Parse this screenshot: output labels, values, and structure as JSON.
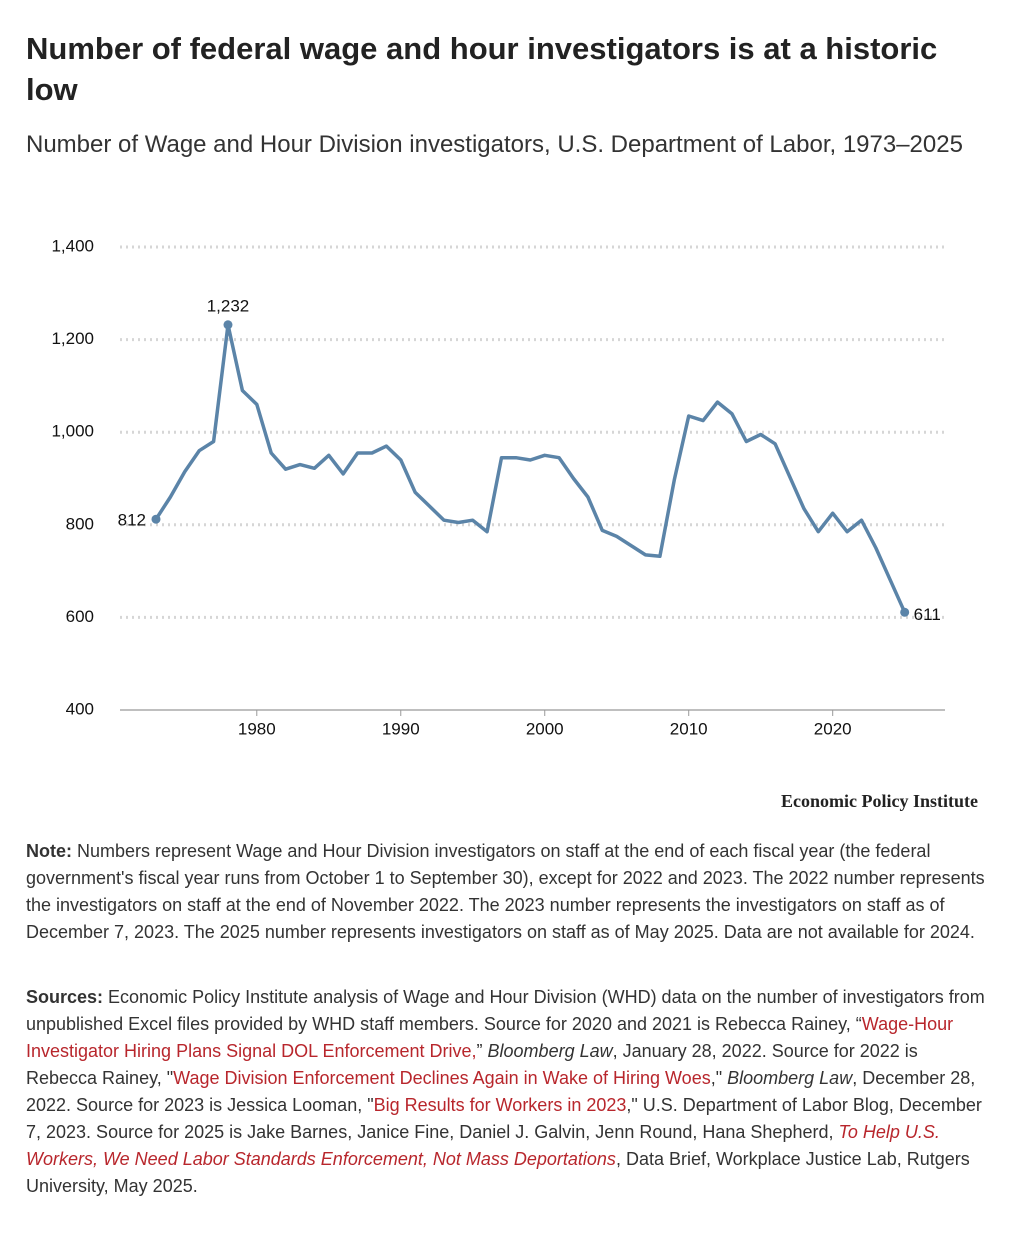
{
  "chart_data": {
    "type": "line",
    "title": "Number of federal wage and hour investigators is at a historic low",
    "subtitle": "Number of Wage and Hour Division investigators, U.S. Department of Labor, 1973–2025",
    "x": [
      1973,
      1974,
      1975,
      1976,
      1977,
      1978,
      1979,
      1980,
      1981,
      1982,
      1983,
      1984,
      1985,
      1986,
      1987,
      1988,
      1989,
      1990,
      1991,
      1992,
      1993,
      1994,
      1995,
      1996,
      1997,
      1998,
      1999,
      2000,
      2001,
      2002,
      2003,
      2004,
      2005,
      2006,
      2007,
      2008,
      2009,
      2010,
      2011,
      2012,
      2013,
      2014,
      2015,
      2016,
      2017,
      2018,
      2019,
      2020,
      2021,
      2022,
      2023,
      2025
    ],
    "values": [
      812,
      860,
      915,
      960,
      980,
      1232,
      1090,
      1060,
      955,
      920,
      930,
      922,
      950,
      910,
      955,
      955,
      970,
      940,
      870,
      840,
      810,
      805,
      810,
      785,
      945,
      945,
      940,
      950,
      945,
      900,
      860,
      788,
      775,
      755,
      735,
      732,
      897,
      1035,
      1025,
      1065,
      1040,
      980,
      995,
      975,
      905,
      835,
      785,
      825,
      785,
      810,
      750,
      611
    ],
    "value_labels": [
      "812",
      null,
      null,
      null,
      null,
      "1,232",
      null,
      null,
      null,
      null,
      null,
      null,
      null,
      null,
      null,
      null,
      null,
      null,
      null,
      null,
      null,
      null,
      null,
      null,
      null,
      null,
      null,
      null,
      null,
      null,
      null,
      null,
      null,
      null,
      null,
      null,
      null,
      null,
      null,
      null,
      null,
      null,
      null,
      null,
      null,
      null,
      null,
      null,
      null,
      null,
      null,
      "611"
    ],
    "color": "#5b84a8",
    "xlim": [
      1970.5,
      2027.8
    ],
    "xticks": [
      1980,
      1990,
      2000,
      2010,
      2020
    ],
    "ylim": [
      400,
      1400
    ],
    "yticks": [
      400,
      600,
      800,
      {
        "value": 1000,
        "label": "1,000"
      },
      {
        "value": 1200,
        "label": "1,200"
      },
      {
        "value": 1400,
        "label": "1,400"
      }
    ],
    "grid": true
  },
  "branding": "Economic Policy Institute",
  "note": [
    {
      "text": "Note:",
      "style": "bold"
    },
    {
      "text": " Numbers represent Wage and Hour Division investigators on staff at the end of each fiscal year (the federal government's fiscal year runs from October 1 to September 30), except for 2022 and 2023. The 2022 number represents the investigators on staff at the end of November 2022. The 2023 number represents the investigators on staff as of December 7, 2023. The 2025 number represents investigators on staff as of May 2025. Data are not available for 2024.",
      "style": "plain"
    }
  ],
  "sources": [
    {
      "text": "Sources:",
      "style": "bold"
    },
    {
      "text": " Economic Policy Institute analysis of Wage and Hour Division (WHD) data on the number of investigators from unpublished Excel files provided by WHD staff members. Source for 2020 and 2021 is Rebecca Rainey, “",
      "style": "plain"
    },
    {
      "text": "Wage-Hour Investigator Hiring Plans Signal DOL Enforcement Drive,",
      "style": "link"
    },
    {
      "text": "” ",
      "style": "plain"
    },
    {
      "text": "Bloomberg Law",
      "style": "italic"
    },
    {
      "text": ", January 28, 2022. Source for 2022 is Rebecca Rainey, \"",
      "style": "plain"
    },
    {
      "text": "Wage Division Enforcement Declines Again in Wake of Hiring Woes",
      "style": "link"
    },
    {
      "text": ",\" ",
      "style": "plain"
    },
    {
      "text": "Bloomberg Law",
      "style": "italic"
    },
    {
      "text": ", December 28, 2022. Source for 2023 is Jessica Looman, \"",
      "style": "plain"
    },
    {
      "text": "Big Results for Workers in 2023",
      "style": "link"
    },
    {
      "text": ",\" U.S. Department of Labor Blog, December 7, 2023. Source for 2025 is Jake Barnes, Janice Fine, Daniel J. Galvin, Jenn Round, Hana Shepherd, ",
      "style": "plain"
    },
    {
      "text": "To Help U.S. Workers, We Need Labor Standards Enforcement, Not Mass Deportations",
      "style": "link-italic"
    },
    {
      "text": ", Data Brief, Workplace Justice Lab, Rutgers University, May 2025.",
      "style": "plain"
    }
  ]
}
